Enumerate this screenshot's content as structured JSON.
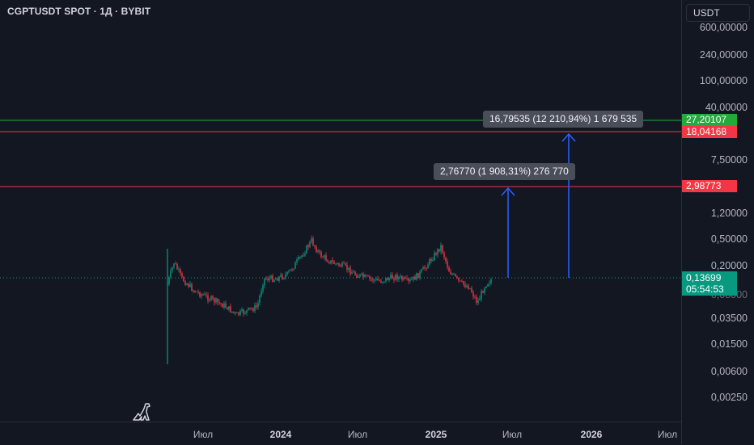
{
  "header": {
    "title": "CGPTUSDT SPOT · 1Д · BYBIT"
  },
  "currency_button": {
    "label": "USDT"
  },
  "price_axis": {
    "ticks": [
      "600,00000",
      "240,00000",
      "100,00000",
      "40,00000",
      "7,50000",
      "1,20000",
      "0,50000",
      "0,20000",
      "0,08000",
      "0,03500",
      "0,01500",
      "0,00600",
      "0,00250"
    ]
  },
  "price_tags": {
    "green_line": {
      "label": "27,20107",
      "color": "#22ab3c"
    },
    "red_line_1": {
      "label": "18,04168",
      "color": "#f23645"
    },
    "red_line_2": {
      "label": "2,98773",
      "color": "#f23645"
    },
    "current_price": {
      "label": "0,13699",
      "color": "#089981"
    },
    "countdown": {
      "label": "05:54:53",
      "color": "#089981"
    }
  },
  "time_axis": {
    "labels": [
      {
        "text": "Июл",
        "bold": false
      },
      {
        "text": "2024",
        "bold": true
      },
      {
        "text": "Июл",
        "bold": false
      },
      {
        "text": "2025",
        "bold": true
      },
      {
        "text": "Июл",
        "bold": false
      },
      {
        "text": "2026",
        "bold": true
      },
      {
        "text": "Июл",
        "bold": false
      }
    ]
  },
  "measurements": [
    {
      "label": "2,76770 (1 908,31%) 276 770"
    },
    {
      "label": "16,79535 (12 210,94%) 1 679 535"
    }
  ],
  "colors": {
    "background": "#131722",
    "up": "#089981",
    "down": "#f23645",
    "arrow": "#2962ff",
    "grid": "#1e222d"
  }
}
